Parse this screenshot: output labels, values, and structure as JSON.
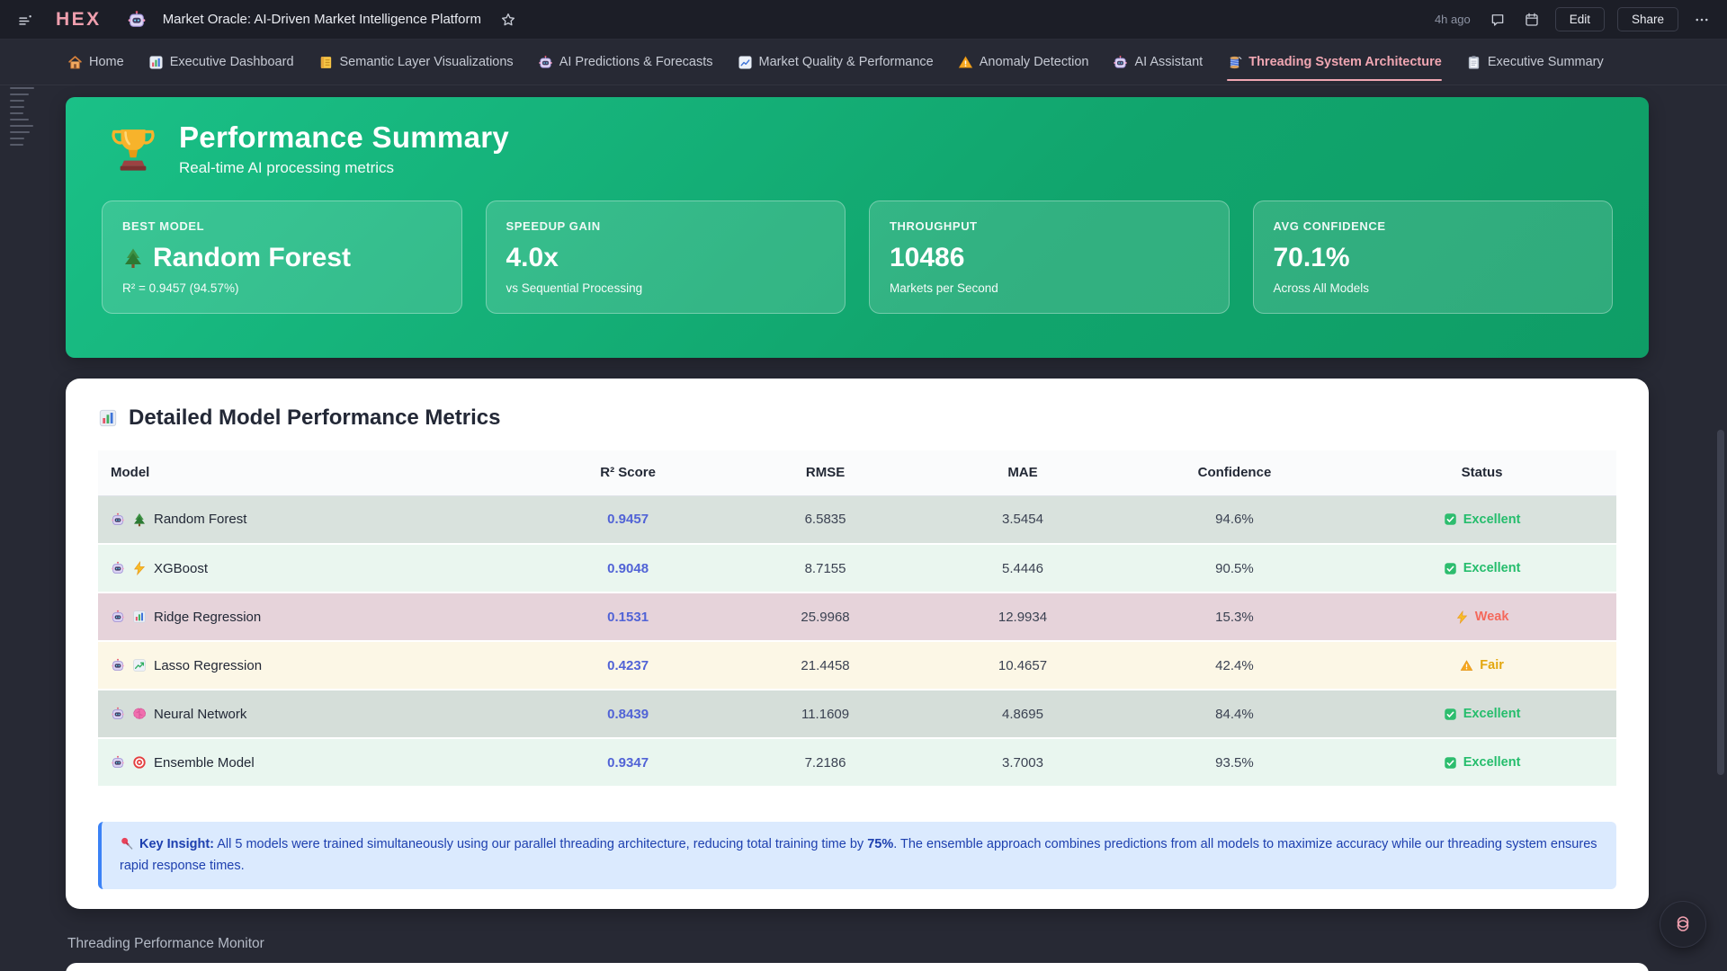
{
  "topbar": {
    "logo": "HEX",
    "doc_icon": "robot",
    "title": "Market Oracle: AI-Driven Market Intelligence Platform",
    "updated": "4h ago",
    "edit_label": "Edit",
    "share_label": "Share"
  },
  "tabs": [
    {
      "icon": "home",
      "label": "Home",
      "active": false
    },
    {
      "icon": "bar-chart-tile",
      "label": "Executive Dashboard",
      "active": false
    },
    {
      "icon": "notebook",
      "label": "Semantic Layer Visualizations",
      "active": false
    },
    {
      "icon": "robot",
      "label": "AI Predictions & Forecasts",
      "active": false
    },
    {
      "icon": "chart-line-tile",
      "label": "Market Quality & Performance",
      "active": false
    },
    {
      "icon": "warning",
      "label": "Anomaly Detection",
      "active": false
    },
    {
      "icon": "robot",
      "label": "AI Assistant",
      "active": false
    },
    {
      "icon": "thread-spool",
      "label": "Threading System Architecture",
      "active": true
    },
    {
      "icon": "clipboard",
      "label": "Executive Summary",
      "active": false
    }
  ],
  "performance_summary": {
    "icon": "trophy",
    "title": "Performance Summary",
    "subtitle": "Real-time AI processing metrics",
    "cards": [
      {
        "label": "BEST MODEL",
        "value": "Random Forest",
        "value_icon": "tree",
        "sub": "R² = 0.9457 (94.57%)"
      },
      {
        "label": "SPEEDUP GAIN",
        "value": "4.0x",
        "sub": "vs Sequential Processing"
      },
      {
        "label": "THROUGHPUT",
        "value": "10486",
        "sub": "Markets per Second"
      },
      {
        "label": "AVG CONFIDENCE",
        "value": "70.1%",
        "sub": "Across All Models"
      }
    ]
  },
  "metrics": {
    "icon": "bar-chart-tile",
    "title": "Detailed Model Performance Metrics",
    "columns": [
      "Model",
      "R² Score",
      "RMSE",
      "MAE",
      "Confidence",
      "Status"
    ],
    "rows": [
      {
        "model": "Random Forest",
        "model_icon": "tree",
        "r2": "0.9457",
        "rmse": "6.5835",
        "mae": "3.5454",
        "confidence": "94.6%",
        "status": "Excellent",
        "tone": "excellent",
        "bg": "#d9e2dd"
      },
      {
        "model": "XGBoost",
        "model_icon": "bolt",
        "r2": "0.9048",
        "rmse": "8.7155",
        "mae": "5.4446",
        "confidence": "90.5%",
        "status": "Excellent",
        "tone": "excellent",
        "bg": "#eaf6ef"
      },
      {
        "model": "Ridge Regression",
        "model_icon": "mini-bars",
        "r2": "0.1531",
        "rmse": "25.9968",
        "mae": "12.9934",
        "confidence": "15.3%",
        "status": "Weak",
        "tone": "weak",
        "bg": "#e6d3da"
      },
      {
        "model": "Lasso Regression",
        "model_icon": "chart-up",
        "r2": "0.4237",
        "rmse": "21.4458",
        "mae": "10.4657",
        "confidence": "42.4%",
        "status": "Fair",
        "tone": "fair",
        "bg": "#fcf7e6"
      },
      {
        "model": "Neural Network",
        "model_icon": "brain",
        "r2": "0.8439",
        "rmse": "11.1609",
        "mae": "4.8695",
        "confidence": "84.4%",
        "status": "Excellent",
        "tone": "excellent",
        "bg": "#d5ded9"
      },
      {
        "model": "Ensemble Model",
        "model_icon": "target",
        "r2": "0.9347",
        "rmse": "7.2186",
        "mae": "3.7003",
        "confidence": "93.5%",
        "status": "Excellent",
        "tone": "excellent",
        "bg": "#e9f6ef"
      }
    ]
  },
  "key_insight": {
    "icon": "pin",
    "label": "Key Insight:",
    "text_before": " All 5 models were trained simultaneously using our parallel threading architecture, reducing total training time by ",
    "bold_value": "75%",
    "text_after": ". The ensemble approach combines predictions from all models to maximize accuracy while our threading system ensures rapid response times."
  },
  "footer": {
    "section_title": "Threading Performance Monitor"
  },
  "colors": {
    "summary_green_start": "#1ac087",
    "summary_green_end": "#0f9d66",
    "active_tab_pink": "#f0a6b2",
    "r2_blue": "#5163d6",
    "insight_text_blue": "#1e40af",
    "insight_bg": "#dbeafe",
    "insight_border": "#3b82f6",
    "status_excellent": "#25bd6c",
    "status_weak": "#f4695c",
    "status_fair": "#e3a70e"
  }
}
